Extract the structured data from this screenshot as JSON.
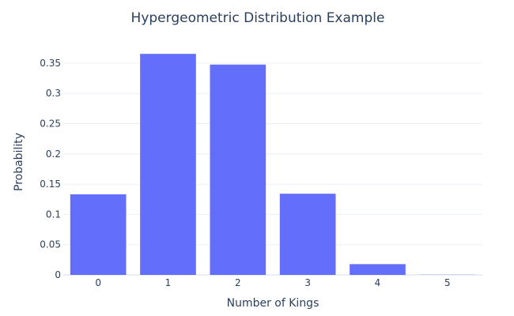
{
  "chart_data": {
    "type": "bar",
    "title": "Hypergeometric Distribution Example",
    "xlabel": "Number of Kings",
    "ylabel": "Probability",
    "categories": [
      "0",
      "1",
      "2",
      "3",
      "4",
      "5"
    ],
    "values": [
      0.1332,
      0.3653,
      0.3476,
      0.1342,
      0.0178,
      0.0003
    ],
    "ylim": [
      0,
      0.376
    ],
    "yticks": [
      0,
      0.05,
      0.1,
      0.15,
      0.2,
      0.25,
      0.3,
      0.35
    ],
    "ytick_labels": [
      "0",
      "0.05",
      "0.1",
      "0.15",
      "0.2",
      "0.25",
      "0.3",
      "0.35"
    ],
    "bar_color": "#636efa",
    "grid": true,
    "legend": "none"
  }
}
